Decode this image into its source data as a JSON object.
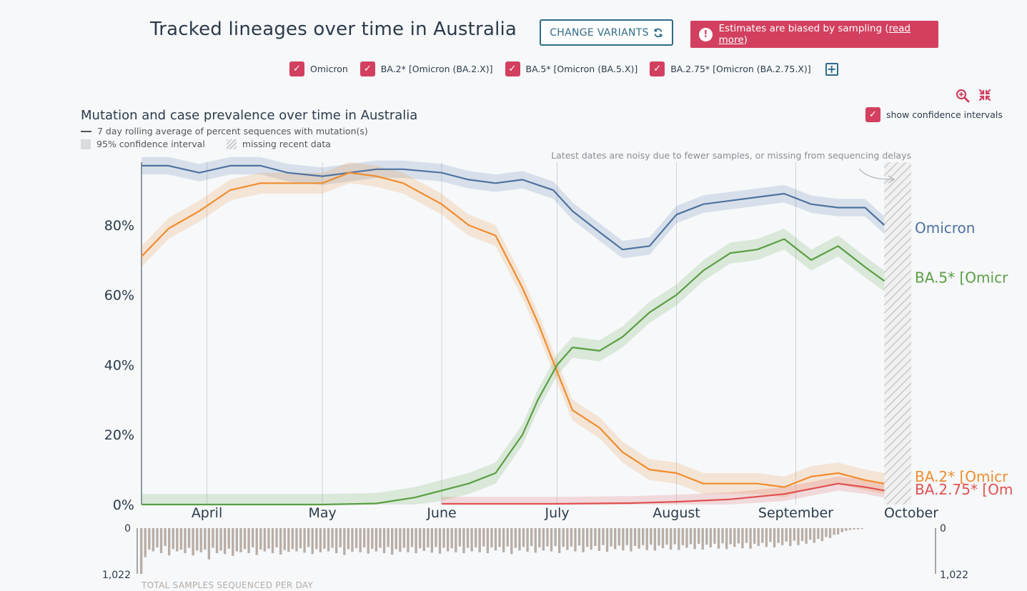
{
  "header": {
    "title": "Tracked lineages over time in Australia",
    "change_variants_label": "CHANGE VARIANTS",
    "warning_text": "Estimates are biased by sampling (",
    "warning_link": "read more",
    "warning_close": ")"
  },
  "variants": [
    {
      "label": "Omicron",
      "checked": true
    },
    {
      "label": "BA.2* [Omicron (BA.2.X)]",
      "checked": true
    },
    {
      "label": "BA.5* [Omicron (BA.5.X)]",
      "checked": true
    },
    {
      "label": "BA.2.75* [Omicron (BA.2.75.X)]",
      "checked": true
    }
  ],
  "controls": {
    "show_ci_label": "show confidence intervals",
    "show_ci_checked": true,
    "icons": [
      "zoom-in-icon",
      "compress-icon",
      "plus-icon",
      "refresh-icon"
    ]
  },
  "colors": {
    "omicron": "#4f73a0",
    "ba2": "#f08c2e",
    "ba5": "#5a9e43",
    "ba275": "#e05050",
    "accent": "#d3405f",
    "button": "#2f6b88",
    "bars": "#b8ada5"
  },
  "chart_data": {
    "type": "line",
    "title": "Mutation and case prevalence over time in Australia",
    "legend": [
      "7 day rolling average of percent sequences with mutation(s)",
      "95% confidence interval",
      "missing recent data"
    ],
    "annotation": "Latest dates are noisy due to fewer samples, or missing from sequencing delays",
    "x_ticks": [
      "April",
      "May",
      "June",
      "July",
      "August",
      "September",
      "October"
    ],
    "y_ticks": [
      "0%",
      "20%",
      "40%",
      "60%",
      "80%"
    ],
    "ylim": [
      0,
      98
    ],
    "xlim": [
      "2022-03-15",
      "2022-10-01"
    ],
    "missing_range": [
      "2022-09-24",
      "2022-10-01"
    ],
    "grid": "vertical",
    "series": [
      {
        "name": "Omicron",
        "end_label": "Omicron",
        "color_key": "omicron",
        "points": [
          [
            "2022-03-15",
            97
          ],
          [
            "2022-03-22",
            97
          ],
          [
            "2022-03-30",
            95
          ],
          [
            "2022-04-07",
            97
          ],
          [
            "2022-04-15",
            97
          ],
          [
            "2022-04-22",
            95
          ],
          [
            "2022-05-01",
            94
          ],
          [
            "2022-05-08",
            95
          ],
          [
            "2022-05-15",
            96
          ],
          [
            "2022-05-22",
            96
          ],
          [
            "2022-06-01",
            95
          ],
          [
            "2022-06-08",
            93
          ],
          [
            "2022-06-15",
            92
          ],
          [
            "2022-06-22",
            93
          ],
          [
            "2022-06-30",
            90
          ],
          [
            "2022-07-05",
            84
          ],
          [
            "2022-07-12",
            78
          ],
          [
            "2022-07-18",
            73
          ],
          [
            "2022-07-25",
            74
          ],
          [
            "2022-08-01",
            83
          ],
          [
            "2022-08-08",
            86
          ],
          [
            "2022-08-15",
            87
          ],
          [
            "2022-08-22",
            88
          ],
          [
            "2022-08-29",
            89
          ],
          [
            "2022-09-05",
            86
          ],
          [
            "2022-09-12",
            85
          ],
          [
            "2022-09-19",
            85
          ],
          [
            "2022-09-24",
            80
          ]
        ],
        "ci": 2.5
      },
      {
        "name": "BA.2* [Omicron (BA.2.X)]",
        "end_label": "BA.2* [Omicr",
        "color_key": "ba2",
        "points": [
          [
            "2022-03-15",
            71
          ],
          [
            "2022-03-22",
            79
          ],
          [
            "2022-03-30",
            84
          ],
          [
            "2022-04-07",
            90
          ],
          [
            "2022-04-15",
            92
          ],
          [
            "2022-04-22",
            92
          ],
          [
            "2022-05-01",
            92
          ],
          [
            "2022-05-08",
            95
          ],
          [
            "2022-05-15",
            94
          ],
          [
            "2022-05-22",
            92
          ],
          [
            "2022-06-01",
            86
          ],
          [
            "2022-06-08",
            80
          ],
          [
            "2022-06-15",
            77
          ],
          [
            "2022-06-22",
            62
          ],
          [
            "2022-06-26",
            52
          ],
          [
            "2022-07-01",
            38
          ],
          [
            "2022-07-05",
            27
          ],
          [
            "2022-07-12",
            22
          ],
          [
            "2022-07-18",
            15
          ],
          [
            "2022-07-25",
            10
          ],
          [
            "2022-08-01",
            9
          ],
          [
            "2022-08-08",
            6
          ],
          [
            "2022-08-15",
            6
          ],
          [
            "2022-08-22",
            6
          ],
          [
            "2022-08-29",
            5
          ],
          [
            "2022-09-05",
            8
          ],
          [
            "2022-09-12",
            9
          ],
          [
            "2022-09-19",
            7
          ],
          [
            "2022-09-24",
            6
          ]
        ],
        "ci": 3
      },
      {
        "name": "BA.5* [Omicron (BA.5.X)]",
        "end_label": "BA.5* [Omicr",
        "color_key": "ba5",
        "points": [
          [
            "2022-03-15",
            0
          ],
          [
            "2022-04-15",
            0
          ],
          [
            "2022-05-01",
            0
          ],
          [
            "2022-05-15",
            0.3
          ],
          [
            "2022-05-25",
            2
          ],
          [
            "2022-06-01",
            4
          ],
          [
            "2022-06-08",
            6
          ],
          [
            "2022-06-15",
            9
          ],
          [
            "2022-06-22",
            20
          ],
          [
            "2022-06-26",
            30
          ],
          [
            "2022-07-01",
            40
          ],
          [
            "2022-07-05",
            45
          ],
          [
            "2022-07-12",
            44
          ],
          [
            "2022-07-18",
            48
          ],
          [
            "2022-07-25",
            55
          ],
          [
            "2022-08-01",
            60
          ],
          [
            "2022-08-08",
            67
          ],
          [
            "2022-08-15",
            72
          ],
          [
            "2022-08-22",
            73
          ],
          [
            "2022-08-29",
            76
          ],
          [
            "2022-09-05",
            70
          ],
          [
            "2022-09-12",
            74
          ],
          [
            "2022-09-19",
            68
          ],
          [
            "2022-09-24",
            64
          ]
        ],
        "ci": 3
      },
      {
        "name": "BA.2.75* [Omicron (BA.2.75.X)]",
        "end_label": "BA.2.75* [Om",
        "color_key": "ba275",
        "points": [
          [
            "2022-06-01",
            0.2
          ],
          [
            "2022-07-01",
            0.2
          ],
          [
            "2022-07-20",
            0.4
          ],
          [
            "2022-08-01",
            0.8
          ],
          [
            "2022-08-15",
            1.5
          ],
          [
            "2022-08-29",
            3
          ],
          [
            "2022-09-05",
            4.5
          ],
          [
            "2022-09-12",
            6
          ],
          [
            "2022-09-19",
            5
          ],
          [
            "2022-09-24",
            4
          ]
        ],
        "ci": 2
      }
    ],
    "samples": {
      "label": "TOTAL SAMPLES SEQUENCED PER DAY",
      "max_label": "1,022",
      "zero_label": "0",
      "max": 1022,
      "values": [
        1022,
        650,
        480,
        520,
        430,
        560,
        400,
        610,
        470,
        520,
        480,
        560,
        440,
        610,
        500,
        540,
        480,
        700,
        440,
        560,
        500,
        580,
        460,
        620,
        520,
        540,
        470,
        560,
        430,
        600,
        480,
        520,
        460,
        560,
        430,
        590,
        490,
        530,
        470,
        520,
        450,
        550,
        420,
        580,
        470,
        540,
        460,
        520,
        440,
        560,
        430,
        600,
        470,
        530,
        450,
        540,
        430,
        570,
        460,
        520,
        440,
        560,
        420,
        590,
        470,
        530,
        440,
        540,
        420,
        560,
        450,
        510,
        430,
        550,
        420,
        570,
        440,
        520,
        450,
        540,
        410,
        560,
        440,
        520,
        430,
        540,
        410,
        560,
        430,
        500,
        420,
        540,
        410,
        580,
        440,
        500,
        420,
        530,
        400,
        550,
        430,
        500,
        410,
        520,
        400,
        560,
        420,
        490,
        410,
        520,
        390,
        540,
        420,
        480,
        400,
        510,
        380,
        530,
        410,
        470,
        390,
        500,
        380,
        520,
        400,
        460,
        380,
        490,
        370,
        500,
        390,
        450,
        370,
        480,
        360,
        490,
        380,
        440,
        360,
        470,
        350,
        480,
        370,
        430,
        350,
        460,
        340,
        470,
        360,
        420,
        340,
        450,
        330,
        460,
        350,
        400,
        330,
        420,
        310,
        430,
        330,
        380,
        300,
        400,
        280,
        380,
        290,
        350,
        260,
        330,
        240,
        290,
        200,
        220,
        150,
        140,
        90,
        60,
        40,
        30,
        30,
        20
      ]
    }
  }
}
